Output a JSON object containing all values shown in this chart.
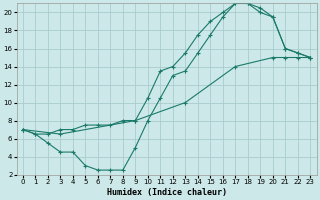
{
  "xlabel": "Humidex (Indice chaleur)",
  "xlim": [
    -0.5,
    23.5
  ],
  "ylim": [
    2,
    21
  ],
  "xticks": [
    0,
    1,
    2,
    3,
    4,
    5,
    6,
    7,
    8,
    9,
    10,
    11,
    12,
    13,
    14,
    15,
    16,
    17,
    18,
    19,
    20,
    21,
    22,
    23
  ],
  "yticks": [
    2,
    4,
    6,
    8,
    10,
    12,
    14,
    16,
    18,
    20
  ],
  "bg_color": "#cce8e8",
  "grid_color": "#aacccc",
  "line_color": "#1a7a6a",
  "curve_A_x": [
    0,
    1,
    2,
    3,
    4,
    5,
    6,
    7,
    8,
    9,
    10,
    11,
    12,
    13,
    14,
    15,
    16,
    17,
    18,
    19,
    20,
    21,
    22,
    23
  ],
  "curve_A_y": [
    7,
    6.5,
    6.5,
    7,
    7,
    7.5,
    7.5,
    7.5,
    8,
    8,
    10.5,
    13.5,
    14,
    15.5,
    17.5,
    19,
    20,
    21,
    21,
    20,
    19.5,
    16,
    15.5,
    15
  ],
  "curve_B_x": [
    0,
    1,
    2,
    3,
    4,
    5,
    6,
    7,
    8,
    9,
    10,
    11,
    12,
    13,
    14,
    15,
    16,
    17,
    18,
    19,
    20,
    21,
    22,
    23
  ],
  "curve_B_y": [
    7,
    6.5,
    5.5,
    4.5,
    4.5,
    3,
    2.5,
    2.5,
    2.5,
    5,
    8,
    10.5,
    13,
    13.5,
    15.5,
    17.5,
    19.5,
    21,
    21,
    20.5,
    19.5,
    16,
    15.5,
    15
  ],
  "curve_C_x": [
    0,
    3,
    9,
    13,
    17,
    20,
    21,
    22,
    23
  ],
  "curve_C_y": [
    7,
    6.5,
    8,
    10,
    14,
    15,
    15,
    15,
    15
  ]
}
